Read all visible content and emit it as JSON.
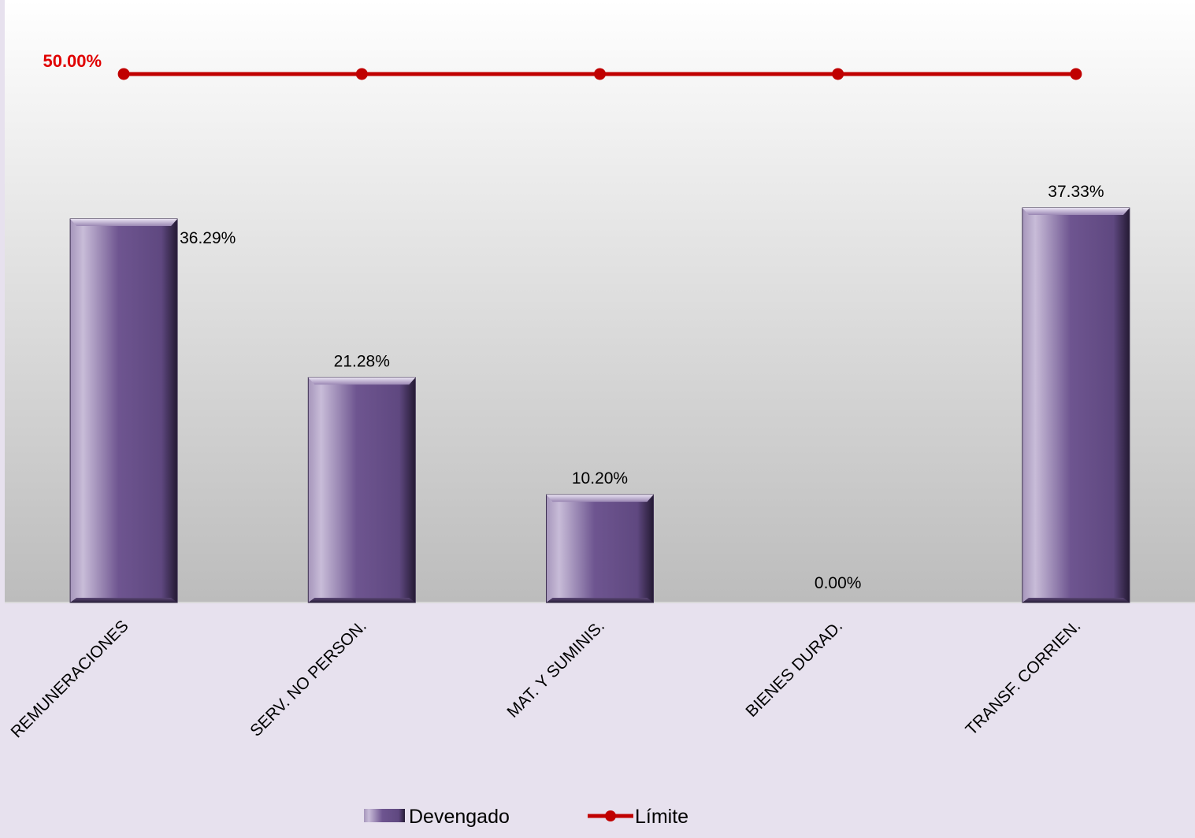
{
  "chart_data": {
    "type": "bar",
    "categories": [
      "REMUNERACIONES",
      "SERV. NO PERSON.",
      "MAT. Y SUMINIS.",
      "BIENES DURAD.",
      "TRANSF. CORRIEN."
    ],
    "series": [
      {
        "name": "Devengado",
        "type": "bar",
        "values": [
          36.29,
          21.28,
          10.2,
          0.0,
          37.33
        ],
        "labels": [
          "36.29%",
          "21.28%",
          "10.20%",
          "0.00%",
          "37.33%"
        ],
        "color": "#6a5287"
      },
      {
        "name": "Límite",
        "type": "line",
        "values": [
          50,
          50,
          50,
          50,
          50
        ],
        "label": "50.00%",
        "color": "#c00000"
      }
    ],
    "ylim": [
      0,
      57
    ],
    "grid": false,
    "legend": "bottom"
  }
}
